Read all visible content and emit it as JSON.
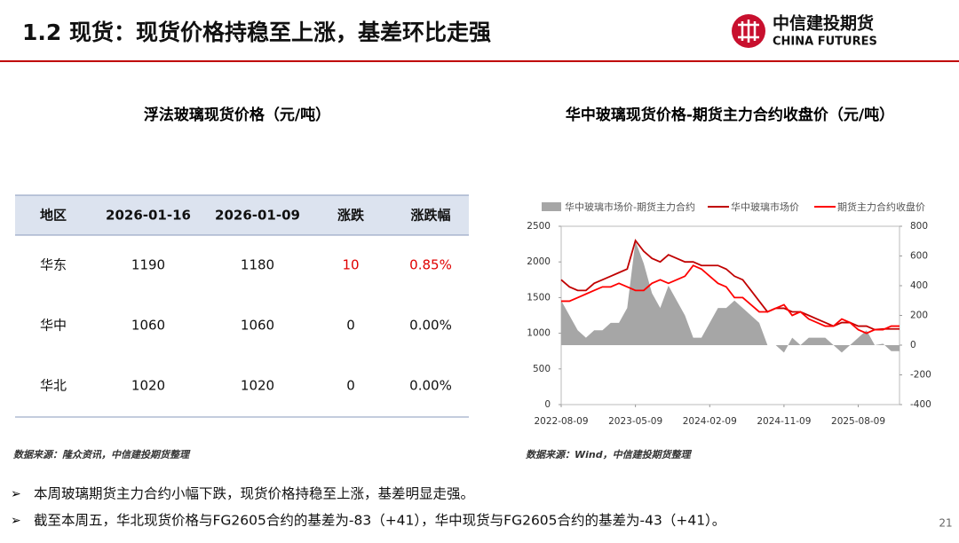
{
  "header": {
    "title": "1.2 现货：现货价格持稳至上涨，基差环比走强",
    "logo_cn": "中信建投期货",
    "logo_en": "CHINA FUTURES"
  },
  "left": {
    "title": "浮法玻璃现货价格（元/吨）",
    "source": "数据来源：隆众资讯，中信建投期货整理"
  },
  "table": {
    "header": [
      "地区",
      "2026-01-16",
      "2026-01-09",
      "涨跌",
      "涨跌幅"
    ],
    "rows": [
      [
        "华东",
        "1190",
        "1180",
        "10",
        "0.85%"
      ],
      [
        "华中",
        "1060",
        "1060",
        "0",
        "0.00%"
      ],
      [
        "华北",
        "1020",
        "1020",
        "0",
        "0.00%"
      ]
    ]
  },
  "chart_data": {
    "type": "line",
    "title": "华中玻璃现货价格-期货主力合约收盘价（元/吨）",
    "x": [
      "2022-08-09",
      "2022-09-09",
      "2022-10-09",
      "2022-11-09",
      "2022-12-09",
      "2023-01-09",
      "2023-02-09",
      "2023-03-09",
      "2023-04-09",
      "2023-05-09",
      "2023-06-09",
      "2023-07-09",
      "2023-08-09",
      "2023-09-09",
      "2023-10-09",
      "2023-11-09",
      "2023-12-09",
      "2024-01-09",
      "2024-02-09",
      "2024-03-09",
      "2024-04-09",
      "2024-05-09",
      "2024-06-09",
      "2024-07-09",
      "2024-08-09",
      "2024-09-09",
      "2024-10-09",
      "2024-11-09",
      "2024-12-09",
      "2025-01-09",
      "2025-02-09",
      "2025-03-09",
      "2025-04-09",
      "2025-05-09",
      "2025-06-09",
      "2025-07-09",
      "2025-08-09",
      "2025-09-09",
      "2025-10-09",
      "2025-11-09",
      "2025-12-09",
      "2026-01-09"
    ],
    "xticks": [
      "2022-08-09",
      "2023-05-09",
      "2024-02-09",
      "2024-11-09",
      "2025-08-09"
    ],
    "ylim": [
      0,
      2500
    ],
    "yticks": [
      0,
      500,
      1000,
      1500,
      2000,
      2500
    ],
    "y2lim": [
      -400,
      800
    ],
    "y2ticks": [
      -400,
      -200,
      0,
      200,
      400,
      600,
      800
    ],
    "series": [
      {
        "name": "华中玻璃市场价-期货主力合约",
        "type": "area",
        "axis": "y2",
        "color": "#a6a6a6",
        "values": [
          300,
          200,
          100,
          50,
          100,
          100,
          150,
          150,
          250,
          700,
          550,
          350,
          250,
          400,
          300,
          200,
          50,
          50,
          150,
          250,
          250,
          300,
          250,
          200,
          150,
          0,
          0,
          -50,
          50,
          0,
          50,
          50,
          50,
          0,
          -50,
          0,
          50,
          100,
          0,
          10,
          -40,
          -40
        ]
      },
      {
        "name": "华中玻璃市场价",
        "type": "line",
        "color": "#c00000",
        "values": [
          1750,
          1650,
          1600,
          1600,
          1700,
          1750,
          1800,
          1850,
          1900,
          2300,
          2150,
          2050,
          2000,
          2100,
          2050,
          2000,
          2000,
          1950,
          1950,
          1950,
          1900,
          1800,
          1750,
          1600,
          1450,
          1300,
          1350,
          1350,
          1300,
          1300,
          1250,
          1200,
          1150,
          1100,
          1150,
          1150,
          1100,
          1100,
          1050,
          1060,
          1060,
          1060
        ]
      },
      {
        "name": "期货主力合约收盘价",
        "type": "line",
        "color": "#ff0000",
        "values": [
          1450,
          1450,
          1500,
          1550,
          1600,
          1650,
          1650,
          1700,
          1650,
          1600,
          1600,
          1700,
          1750,
          1700,
          1750,
          1800,
          1950,
          1900,
          1800,
          1700,
          1650,
          1500,
          1500,
          1400,
          1300,
          1300,
          1350,
          1400,
          1250,
          1300,
          1200,
          1150,
          1100,
          1100,
          1200,
          1150,
          1050,
          1000,
          1050,
          1050,
          1100,
          1100
        ]
      }
    ],
    "source": "数据来源：Wind，中信建投期货整理"
  },
  "bullets": [
    "本周玻璃期货主力合约小幅下跌，现货价格持稳至上涨，基差明显走强。",
    "截至本周五，华北现货价格与FG2605合约的基差为-83（+41），华中现货与FG2605合约的基差为-43（+41）。"
  ],
  "page_number": "21"
}
